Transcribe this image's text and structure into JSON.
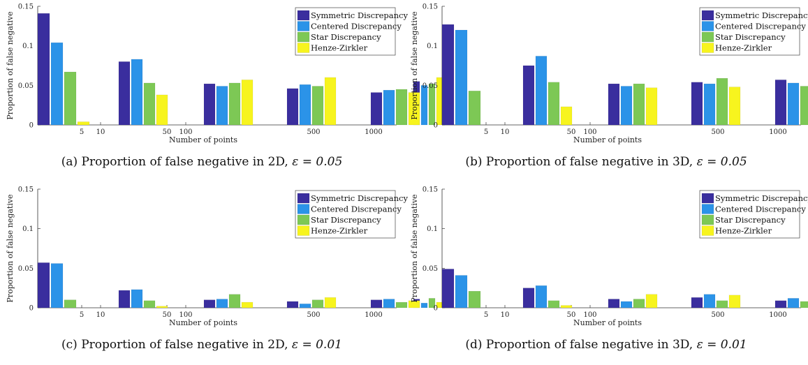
{
  "series_names": [
    "Symmetric Discrepancy",
    "Centered Discrepancy",
    "Star Discrepancy",
    "Henze-Zirkler"
  ],
  "colors": [
    "#3a2e9e",
    "#2b93e8",
    "#7dc855",
    "#f7f41e"
  ],
  "chart_data": [
    {
      "type": "bar",
      "caption_prefix": "(a) Proportion of false negative in 2D,",
      "caption_eps": "ε = 0.05",
      "xlabel": "Number of points",
      "ylabel": "Proportion of false negative",
      "ylim": [
        0,
        0.15
      ],
      "yticks": [
        "0",
        "0.05",
        "0.1",
        "0.15"
      ],
      "xticks": [
        "5",
        "10",
        "50",
        "100",
        "500",
        "1000"
      ],
      "legend": "top-right",
      "series": [
        {
          "name": "Symmetric Discrepancy",
          "values": [
            0.141,
            0.08,
            0.052,
            0.046,
            0.041,
            0.055
          ]
        },
        {
          "name": "Centered Discrepancy",
          "values": [
            0.104,
            0.083,
            0.049,
            0.051,
            0.044,
            0.05
          ]
        },
        {
          "name": "Star Discrepancy",
          "values": [
            0.067,
            0.053,
            0.053,
            0.049,
            0.045,
            0.052
          ]
        },
        {
          "name": "Henze-Zirkler",
          "values": [
            0.004,
            0.038,
            0.057,
            0.06,
            0.041,
            0.06
          ]
        }
      ]
    },
    {
      "type": "bar",
      "caption_prefix": "(b) Proportion of false negative in 3D,",
      "caption_eps": "ε = 0.05",
      "xlabel": "Number of points",
      "ylabel": "Proportion of false negative",
      "ylim": [
        0,
        0.15
      ],
      "yticks": [
        "0",
        "0.05",
        "0.1",
        "0.15"
      ],
      "xticks": [
        "5",
        "10",
        "50",
        "100",
        "500",
        "1000"
      ],
      "legend": "top-right",
      "series": [
        {
          "name": "Symmetric Discrepancy",
          "values": [
            0.127,
            0.075,
            0.052,
            0.054,
            0.057,
            0.061
          ]
        },
        {
          "name": "Centered Discrepancy",
          "values": [
            0.12,
            0.087,
            0.049,
            0.052,
            0.053,
            0.053
          ]
        },
        {
          "name": "Star Discrepancy",
          "values": [
            0.043,
            0.054,
            0.052,
            0.059,
            0.049,
            0.051
          ]
        },
        {
          "name": "Henze-Zirkler",
          "values": [
            0.0,
            0.023,
            0.047,
            0.048,
            0.053,
            0.063
          ]
        }
      ]
    },
    {
      "type": "bar",
      "caption_prefix": "(c) Proportion of false negative in 2D,",
      "caption_eps": "ε = 0.01",
      "xlabel": "Number of points",
      "ylabel": "Proportion of false negative",
      "ylim": [
        0,
        0.15
      ],
      "yticks": [
        "0",
        "0.05",
        "0.1",
        "0.15"
      ],
      "xticks": [
        "5",
        "10",
        "50",
        "100",
        "500",
        "1000"
      ],
      "legend": "top-right",
      "series": [
        {
          "name": "Symmetric Discrepancy",
          "values": [
            0.057,
            0.022,
            0.01,
            0.008,
            0.01,
            0.011
          ]
        },
        {
          "name": "Centered Discrepancy",
          "values": [
            0.056,
            0.023,
            0.011,
            0.005,
            0.011,
            0.006
          ]
        },
        {
          "name": "Star Discrepancy",
          "values": [
            0.01,
            0.009,
            0.017,
            0.01,
            0.007,
            0.012
          ]
        },
        {
          "name": "Henze-Zirkler",
          "values": [
            0.0,
            0.002,
            0.007,
            0.013,
            0.009,
            0.007
          ]
        }
      ]
    },
    {
      "type": "bar",
      "caption_prefix": "(d) Proportion of false negative in 3D,",
      "caption_eps": "ε = 0.01",
      "xlabel": "Number of points",
      "ylabel": "Proportion of false negative",
      "ylim": [
        0,
        0.15
      ],
      "yticks": [
        "0",
        "0.05",
        "0.1",
        "0.15"
      ],
      "xticks": [
        "5",
        "10",
        "50",
        "100",
        "500",
        "1000"
      ],
      "legend": "top-right",
      "series": [
        {
          "name": "Symmetric Discrepancy",
          "values": [
            0.049,
            0.025,
            0.011,
            0.013,
            0.009,
            0.012
          ]
        },
        {
          "name": "Centered Discrepancy",
          "values": [
            0.041,
            0.028,
            0.008,
            0.017,
            0.012,
            0.006
          ]
        },
        {
          "name": "Star Discrepancy",
          "values": [
            0.021,
            0.009,
            0.011,
            0.009,
            0.008,
            0.009
          ]
        },
        {
          "name": "Henze-Zirkler",
          "values": [
            0.0,
            0.003,
            0.017,
            0.016,
            0.009,
            0.009
          ]
        }
      ]
    }
  ]
}
